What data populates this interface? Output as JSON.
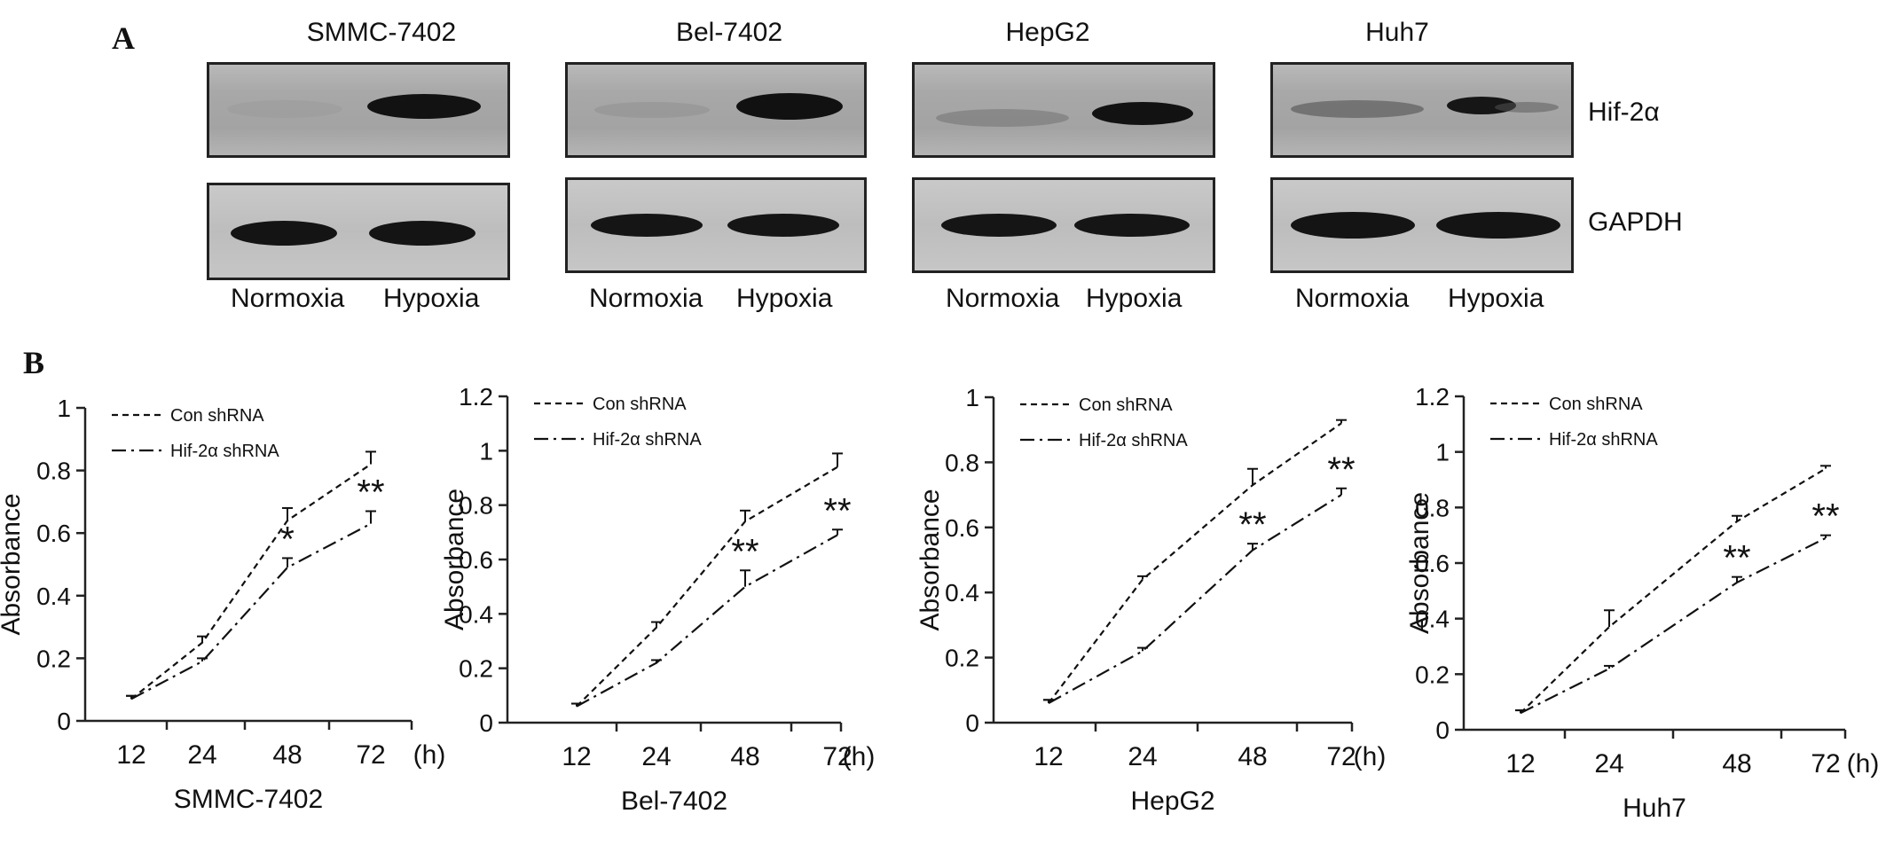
{
  "panelA": {
    "letter": "A",
    "row_labels": [
      "Hif-2α",
      "GAPDH"
    ],
    "lane_labels": [
      "Normoxia",
      "Hypoxia"
    ],
    "blots": [
      {
        "title": "SMMC-7402"
      },
      {
        "title": "Bel-7402"
      },
      {
        "title": "HepG2"
      },
      {
        "title": "Huh7"
      }
    ]
  },
  "panelB": {
    "letter": "B"
  },
  "chart_data": [
    {
      "type": "line",
      "title": "",
      "xlabel": "SMMC-7402",
      "ylabel": "Absorbance",
      "x_unit": "(h)",
      "categories": [
        "12",
        "24",
        "48",
        "72"
      ],
      "ylim": [
        0,
        1
      ],
      "yticks": [
        "0",
        "0.2",
        "0.4",
        "0.6",
        "0.8",
        "1"
      ],
      "legend": "top-left",
      "series": [
        {
          "name": "Con shRNA",
          "values": [
            0.07,
            0.25,
            0.64,
            0.82
          ],
          "errors": [
            0.01,
            0.02,
            0.04,
            0.04
          ],
          "dash": "dashed"
        },
        {
          "name": "Hif-2α shRNA",
          "values": [
            0.07,
            0.19,
            0.49,
            0.63
          ],
          "errors": [
            0.01,
            0.01,
            0.03,
            0.04
          ],
          "dash": "dash-dot"
        }
      ],
      "annotations": [
        "*",
        "**"
      ]
    },
    {
      "type": "line",
      "title": "",
      "xlabel": "Bel-7402",
      "ylabel": "Absorbance",
      "x_unit": "(h)",
      "categories": [
        "12",
        "24",
        "48",
        "72"
      ],
      "ylim": [
        0,
        1.2
      ],
      "yticks": [
        "0",
        "0.2",
        "0.4",
        "0.6",
        "0.8",
        "1",
        "1.2"
      ],
      "legend": "top-left",
      "series": [
        {
          "name": "Con shRNA",
          "values": [
            0.06,
            0.35,
            0.74,
            0.94
          ],
          "errors": [
            0.01,
            0.02,
            0.04,
            0.05
          ],
          "dash": "dashed"
        },
        {
          "name": "Hif-2α shRNA",
          "values": [
            0.06,
            0.22,
            0.5,
            0.69
          ],
          "errors": [
            0.01,
            0.01,
            0.06,
            0.02
          ],
          "dash": "dash-dot"
        }
      ],
      "annotations": [
        "**",
        "**"
      ]
    },
    {
      "type": "line",
      "title": "",
      "xlabel": "HepG2",
      "ylabel": "Absorbance",
      "x_unit": "(h)",
      "categories": [
        "12",
        "24",
        "48",
        "72"
      ],
      "ylim": [
        0,
        1
      ],
      "yticks": [
        "0",
        "0.2",
        "0.4",
        "0.6",
        "0.8",
        "1"
      ],
      "legend": "top-left",
      "series": [
        {
          "name": "Con shRNA",
          "values": [
            0.06,
            0.44,
            0.73,
            0.92
          ],
          "errors": [
            0.01,
            0.01,
            0.05,
            0.01
          ],
          "dash": "dashed"
        },
        {
          "name": "Hif-2α shRNA",
          "values": [
            0.06,
            0.22,
            0.53,
            0.7
          ],
          "errors": [
            0.01,
            0.01,
            0.02,
            0.02
          ],
          "dash": "dash-dot"
        }
      ],
      "annotations": [
        "**",
        "**"
      ]
    },
    {
      "type": "line",
      "title": "",
      "xlabel": "Huh7",
      "ylabel": "Absorbance",
      "x_unit": "(h)",
      "categories": [
        "12",
        "24",
        "48",
        "72"
      ],
      "ylim": [
        0,
        1.2
      ],
      "yticks": [
        "0",
        "0.2",
        "0.4",
        "0.6",
        "0.8",
        "1",
        "1.2"
      ],
      "legend": "top-left",
      "series": [
        {
          "name": "Con shRNA",
          "values": [
            0.06,
            0.37,
            0.75,
            0.94
          ],
          "errors": [
            0.01,
            0.06,
            0.02,
            0.01
          ],
          "dash": "dashed"
        },
        {
          "name": "Hif-2α shRNA",
          "values": [
            0.06,
            0.22,
            0.53,
            0.69
          ],
          "errors": [
            0.01,
            0.01,
            0.02,
            0.01
          ],
          "dash": "dash-dot"
        }
      ],
      "annotations": [
        "**",
        "**"
      ]
    }
  ]
}
